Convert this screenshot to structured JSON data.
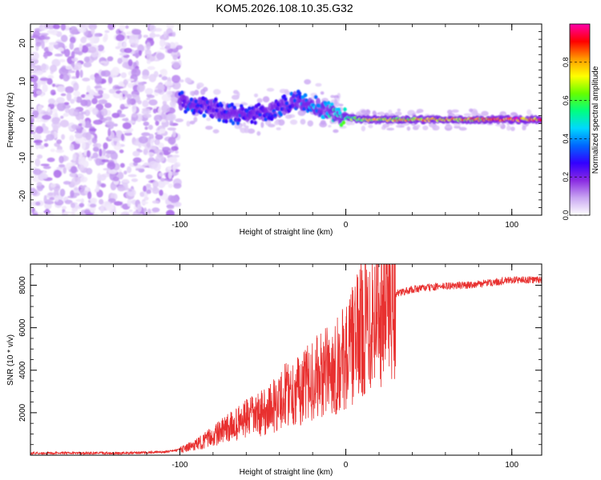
{
  "title": "KOM5.2026.108.10.35.G32",
  "chart_data": [
    {
      "type": "heatmap",
      "name": "spectrogram",
      "xlabel": "Height of straight line (km)",
      "ylabel": "Frequency (Hz)",
      "xlim": [
        -190,
        118
      ],
      "ylim": [
        -25,
        25
      ],
      "xticks": [
        -100,
        0,
        100
      ],
      "yticks": [
        -20,
        -10,
        0,
        10,
        20
      ],
      "colorbar": {
        "label": "Normalized spectral amplitude",
        "range": [
          0,
          1
        ],
        "ticks": [
          "0.0",
          "0.2",
          "0.4",
          "0.6",
          "0.8"
        ],
        "colors": [
          "#ffffff",
          "#c9a6f2",
          "#8a2be2",
          "#3300ff",
          "#0066ff",
          "#00d8ff",
          "#00ff80",
          "#66ff00",
          "#ffff00",
          "#ff9900",
          "#ff0000",
          "#ff00aa"
        ]
      },
      "noise_region_x": [
        -190,
        -100
      ],
      "ridge": {
        "x": [
          -100,
          -90,
          -80,
          -70,
          -60,
          -50,
          -40,
          -30,
          -20,
          -10,
          0,
          10,
          20,
          40,
          60,
          80,
          100,
          118
        ],
        "freq": [
          5,
          4,
          3,
          1.5,
          1,
          1.5,
          3,
          5,
          4,
          2,
          0.5,
          0,
          0,
          0,
          0,
          0,
          0,
          0
        ],
        "amplitude": [
          0.3,
          0.35,
          0.3,
          0.35,
          0.3,
          0.3,
          0.35,
          0.35,
          0.4,
          0.5,
          0.6,
          0.7,
          0.75,
          0.8,
          0.8,
          0.85,
          0.95,
          0.9
        ]
      }
    },
    {
      "type": "line",
      "name": "snr",
      "xlabel": "Height of straight line (km)",
      "ylabel": "SNR (10 * v/v)",
      "xlim": [
        -190,
        118
      ],
      "ylim": [
        0,
        9000
      ],
      "xticks": [
        -100,
        0,
        100
      ],
      "yticks": [
        2000,
        4000,
        6000,
        8000
      ],
      "color": "#e8302f",
      "series": [
        {
          "name": "SNR",
          "x": [
            -190,
            -160,
            -130,
            -110,
            -100,
            -90,
            -80,
            -70,
            -60,
            -50,
            -40,
            -35,
            -30,
            -25,
            -20,
            -15,
            -10,
            -5,
            0,
            5,
            10,
            15,
            20,
            25,
            30,
            40,
            50,
            60,
            70,
            80,
            90,
            100,
            110,
            118
          ],
          "y": [
            100,
            100,
            100,
            150,
            250,
            500,
            900,
            1300,
            1700,
            2000,
            2500,
            3000,
            3000,
            3200,
            3600,
            3700,
            4000,
            4300,
            4600,
            5300,
            6000,
            6600,
            7000,
            7400,
            7600,
            7800,
            7900,
            7950,
            8000,
            8050,
            8150,
            8250,
            8250,
            8250
          ]
        }
      ]
    }
  ]
}
